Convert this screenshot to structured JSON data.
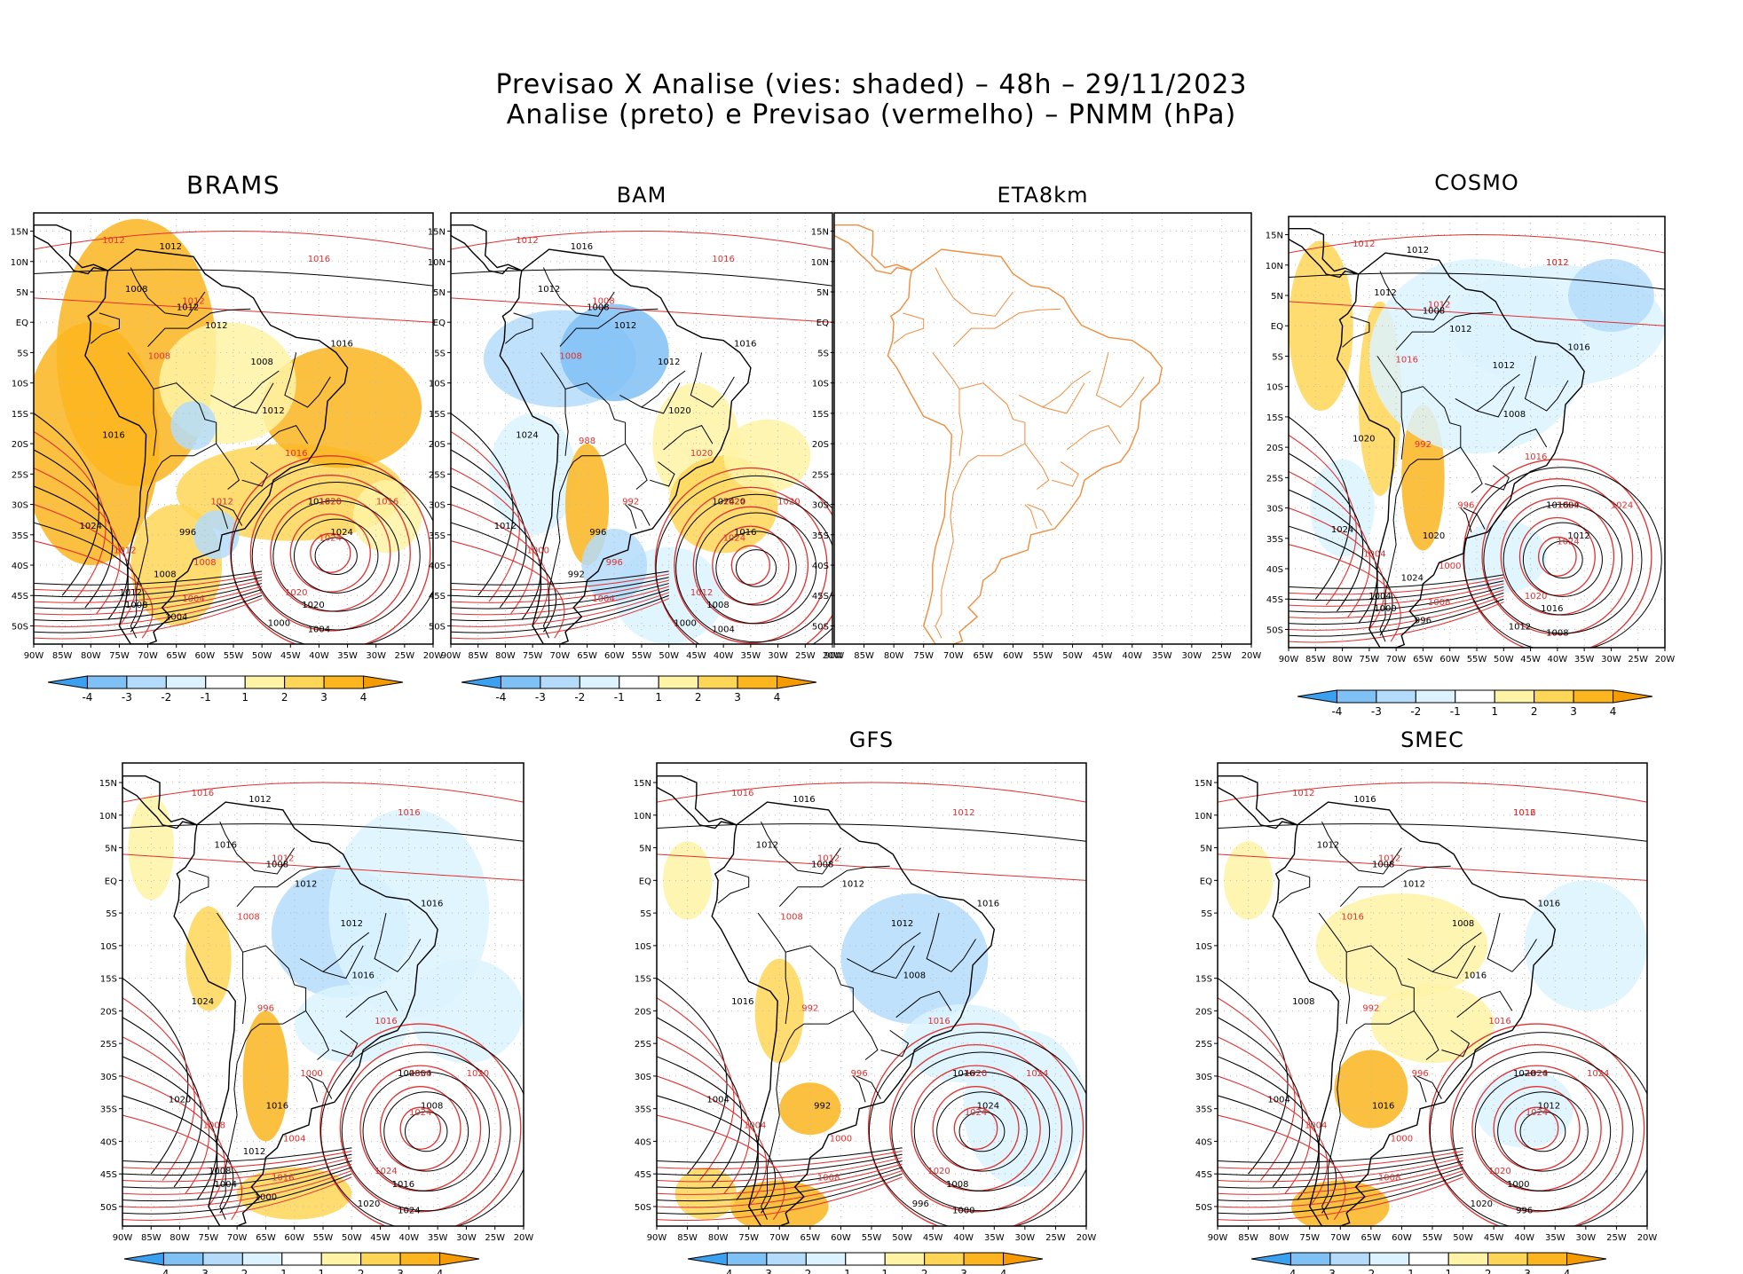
{
  "header": {
    "line1": "Previsao X Analise (vies: shaded) – 48h – 29/11/2023",
    "line2": "Analise (preto) e Previsao (vermelho) – PNMM (hPa)"
  },
  "axis": {
    "lat_labels": [
      "15N",
      "10N",
      "5N",
      "EQ",
      "5S",
      "10S",
      "15S",
      "20S",
      "25S",
      "30S",
      "35S",
      "40S",
      "45S",
      "50S"
    ],
    "lon_labels": [
      "90W",
      "85W",
      "80W",
      "75W",
      "70W",
      "65W",
      "60W",
      "55W",
      "50W",
      "45W",
      "40W",
      "35W",
      "30W",
      "25W",
      "20W"
    ]
  },
  "colorbar": {
    "labels": [
      "-4",
      "-3",
      "-2",
      "-1",
      "1",
      "2",
      "3",
      "4"
    ],
    "colors": [
      "#3aa0f0",
      "#7fc0f5",
      "#b4dcfa",
      "#dcf3ff",
      "#ffffff",
      "#fff3a6",
      "#fed657",
      "#fcb51f",
      "#f59a00"
    ]
  },
  "contour_colors": {
    "analysis": "#000000",
    "forecast": "#e03030",
    "coast_eta": "#f08c3c"
  },
  "panels": [
    {
      "id": "brams",
      "title": "BRAMS",
      "labels_black": [
        "1012",
        "1008",
        "1012",
        "1012",
        "1016",
        "1008",
        "1012",
        "1016",
        "1020",
        "1024",
        "1016",
        "1024",
        "1020",
        "1004",
        "1000",
        "996",
        "1008",
        "1012",
        "1008",
        "1004"
      ],
      "labels_red": [
        "1016",
        "1012",
        "1012",
        "1008",
        "1016",
        "1020",
        "1024",
        "1016",
        "1020",
        "1004",
        "1012",
        "1008",
        "1012"
      ]
    },
    {
      "id": "bam",
      "title": "BAM",
      "labels_black": [
        "1016",
        "1012",
        "1008",
        "1012",
        "1016",
        "1012",
        "1020",
        "1024",
        "1020",
        "1016",
        "1024",
        "1012",
        "1008",
        "1004",
        "1000",
        "996",
        "992"
      ],
      "labels_red": [
        "1016",
        "1012",
        "1008",
        "1008",
        "1020",
        "1024",
        "1024",
        "1020",
        "1012",
        "1004",
        "1000",
        "996",
        "992",
        "988"
      ]
    },
    {
      "id": "eta8km",
      "title": "ETA8km",
      "labels_black": [],
      "labels_red": []
    },
    {
      "id": "cosmo",
      "title": "COSMO",
      "labels_black": [
        "1012",
        "1012",
        "1008",
        "1012",
        "1016",
        "1012",
        "1008",
        "1016",
        "1004",
        "1012",
        "1020",
        "1024",
        "1016",
        "1008",
        "1012",
        "1020",
        "1024",
        "1004",
        "1000",
        "996"
      ],
      "labels_red": [
        "1012",
        "1012",
        "1012",
        "1016",
        "1016",
        "1020",
        "1024",
        "1024",
        "1020",
        "1008",
        "1004",
        "1000",
        "996",
        "992",
        "1012"
      ]
    },
    {
      "id": "brams-2",
      "title": "",
      "labels_black": [
        "1012",
        "1016",
        "1008",
        "1012",
        "1016",
        "1012",
        "1016",
        "1008",
        "1004",
        "1008",
        "1024",
        "1020",
        "1016",
        "1024",
        "1020",
        "1016",
        "1012",
        "1008",
        "1004",
        "1000"
      ],
      "labels_red": [
        "1016",
        "1016",
        "1012",
        "1008",
        "1016",
        "1020",
        "1024",
        "1020",
        "1024",
        "1016",
        "1008",
        "1004",
        "1000",
        "996"
      ]
    },
    {
      "id": "gfs",
      "title": "GFS",
      "labels_black": [
        "1016",
        "1012",
        "1008",
        "1012",
        "1016",
        "1012",
        "1008",
        "1016",
        "1020",
        "1024",
        "1016",
        "1004",
        "1008",
        "1000",
        "996",
        "992"
      ],
      "labels_red": [
        "1012",
        "1016",
        "1012",
        "1008",
        "1016",
        "1020",
        "1024",
        "1024",
        "1020",
        "1008",
        "1004",
        "1000",
        "996",
        "992"
      ]
    },
    {
      "id": "smec",
      "title": "SMEC",
      "labels_black": [
        "1016",
        "1012",
        "1008",
        "1012",
        "1016",
        "1008",
        "1016",
        "1020",
        "1024",
        "1012",
        "1008",
        "1004",
        "1000",
        "996",
        "1020",
        "1016"
      ],
      "labels_red": [
        "1016",
        "1012",
        "1012",
        "1016",
        "1016",
        "1020",
        "1024",
        "1024",
        "1020",
        "1008",
        "1004",
        "1000",
        "996",
        "992",
        "1012"
      ]
    }
  ]
}
